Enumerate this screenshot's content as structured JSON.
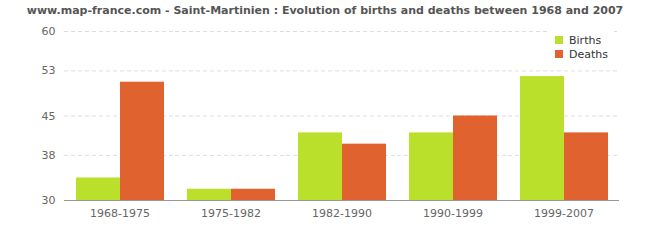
{
  "chart_data": {
    "type": "bar",
    "title": "www.map-france.com - Saint-Martinien : Evolution of births and deaths between 1968 and 2007",
    "categories": [
      "1968-1975",
      "1975-1982",
      "1982-1990",
      "1990-1999",
      "1999-2007"
    ],
    "series": [
      {
        "name": "Births",
        "color": "#bbe02c",
        "values": [
          34,
          32,
          42,
          42,
          52
        ]
      },
      {
        "name": "Deaths",
        "color": "#e0622f",
        "values": [
          51,
          32,
          40,
          45,
          42
        ]
      }
    ],
    "ylim": [
      30,
      60
    ],
    "yticks": [
      30,
      38,
      45,
      53,
      60
    ],
    "grid": true,
    "legend": "top-right"
  }
}
